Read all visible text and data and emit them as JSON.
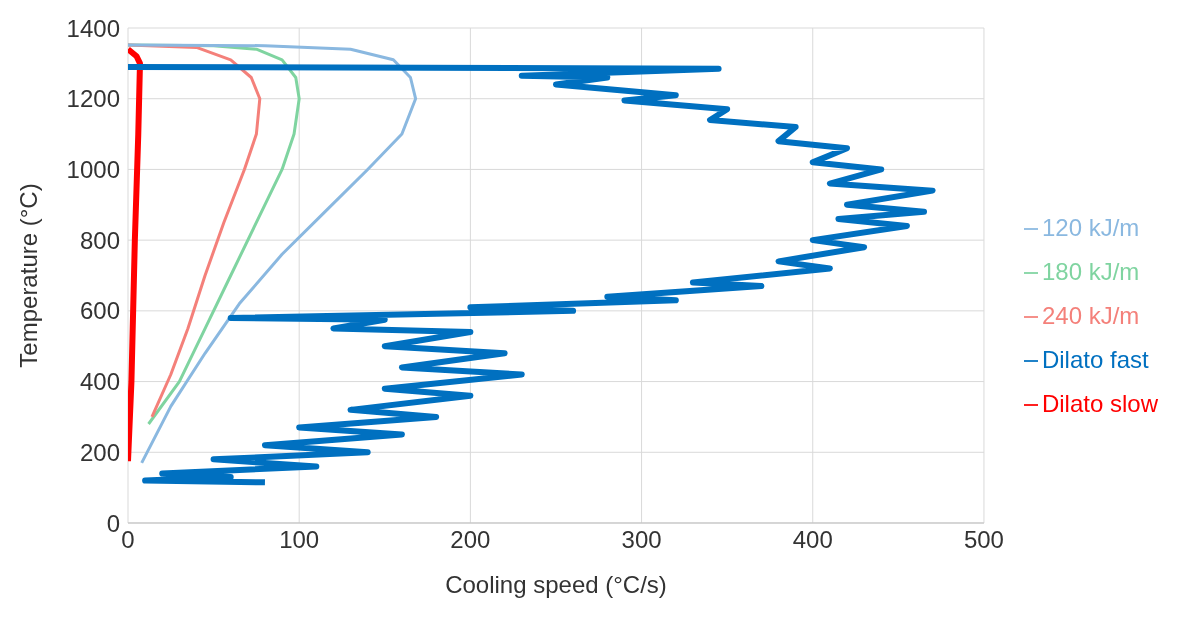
{
  "chart_data": {
    "type": "line",
    "xlabel": "Cooling speed (°C/s)",
    "ylabel": "Temperature (°C)",
    "xlim": [
      0,
      500
    ],
    "xticks": [
      0,
      100,
      200,
      300,
      400,
      500
    ],
    "ylim": [
      0,
      1400
    ],
    "yticks": [
      0,
      200,
      400,
      600,
      800,
      1000,
      1200,
      1400
    ],
    "grid": true,
    "legend": "right",
    "marker": "none",
    "series": [
      {
        "name": "180 kJ/m",
        "color": "#7fd4a0",
        "x": [
          0,
          50,
          75,
          90,
          98,
          100,
          97,
          90,
          75,
          60,
          45,
          30,
          12
        ],
        "values": [
          1352,
          1350,
          1340,
          1310,
          1260,
          1200,
          1100,
          1000,
          850,
          700,
          550,
          400,
          280
        ]
      },
      {
        "name": "240 kJ/m",
        "color": "#f4807a",
        "x": [
          0,
          40,
          60,
          72,
          77,
          75,
          68,
          56,
          45,
          35,
          25,
          14
        ],
        "values": [
          1352,
          1345,
          1310,
          1260,
          1200,
          1100,
          1000,
          850,
          700,
          550,
          420,
          300
        ]
      },
      {
        "name": "120 kJ/m",
        "color": "#8ab8e0",
        "x": [
          0,
          80,
          130,
          155,
          165,
          168,
          160,
          140,
          115,
          90,
          65,
          45,
          25,
          8
        ],
        "values": [
          1352,
          1350,
          1340,
          1310,
          1260,
          1200,
          1100,
          1000,
          880,
          760,
          620,
          480,
          330,
          170
        ]
      },
      {
        "name": "Dilato slow",
        "color": "#ff0000",
        "x": [
          0,
          5,
          7,
          6,
          4,
          2,
          0
        ],
        "values": [
          1340,
          1320,
          1300,
          1100,
          800,
          400,
          175
        ]
      },
      {
        "name": "Dilato fast",
        "color": "#0070c0",
        "x": [
          0,
          345,
          230,
          280,
          250,
          320,
          290,
          350,
          340,
          390,
          380,
          420,
          400,
          440,
          410,
          470,
          420,
          465,
          415,
          455,
          400,
          430,
          380,
          410,
          330,
          370,
          280,
          320,
          200,
          260,
          60,
          150,
          120,
          200,
          150,
          220,
          160,
          230,
          150,
          200,
          130,
          180,
          100,
          160,
          80,
          140,
          50,
          110,
          20,
          60,
          10,
          80
        ],
        "values": [
          1290,
          1285,
          1265,
          1260,
          1240,
          1210,
          1195,
          1170,
          1140,
          1120,
          1080,
          1060,
          1020,
          1000,
          960,
          940,
          900,
          880,
          860,
          840,
          800,
          780,
          740,
          720,
          680,
          670,
          640,
          630,
          610,
          600,
          580,
          575,
          550,
          540,
          500,
          480,
          440,
          420,
          380,
          360,
          320,
          300,
          270,
          250,
          220,
          200,
          180,
          160,
          140,
          130,
          120,
          115
        ]
      }
    ]
  }
}
